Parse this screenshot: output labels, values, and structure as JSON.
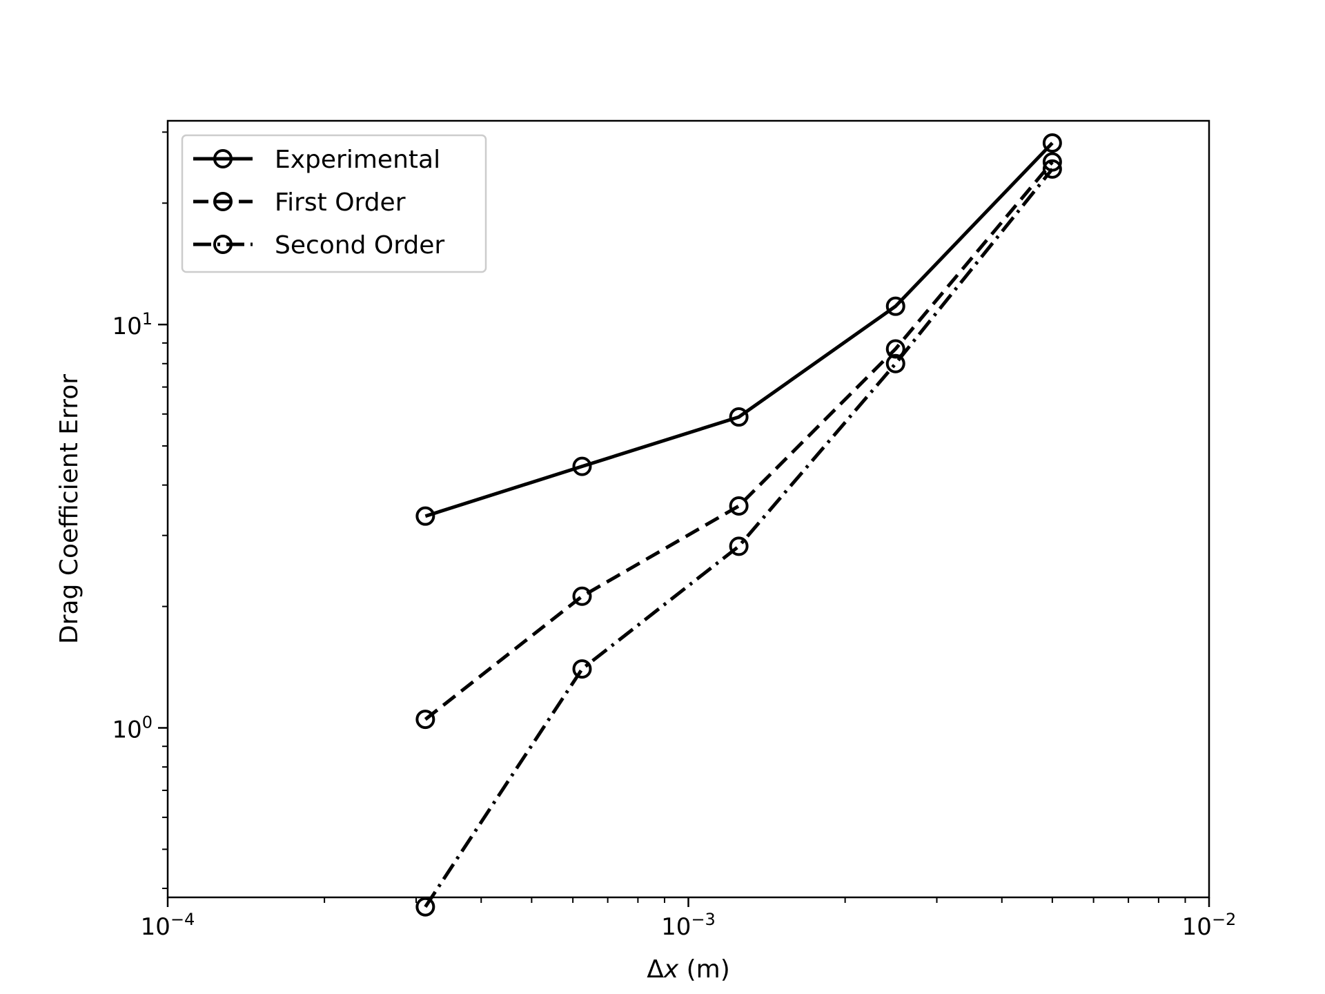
{
  "chart_data": {
    "type": "line",
    "xscale": "log",
    "yscale": "log",
    "xlim": [
      0.0001,
      0.01
    ],
    "ylim": [
      0.38,
      32
    ],
    "xlabel_symbol": "Δ",
    "xlabel_var": "x",
    "xlabel_unit": " (m)",
    "ylabel": "Drag Coefficient Error",
    "grid": false,
    "legend_position": "top-left",
    "x_ticks": [
      {
        "value": 0.0001,
        "base": "10",
        "exp": "−4"
      },
      {
        "value": 0.001,
        "base": "10",
        "exp": "−3"
      },
      {
        "value": 0.01,
        "base": "10",
        "exp": "−2"
      }
    ],
    "y_ticks": [
      {
        "value": 1,
        "base": "10",
        "exp": "0"
      },
      {
        "value": 10,
        "base": "10",
        "exp": "1"
      }
    ],
    "x": [
      0.0003125,
      0.000625,
      0.00125,
      0.0025,
      0.005
    ],
    "series": [
      {
        "name": "Experimental",
        "style": "solid",
        "values": [
          3.35,
          4.45,
          5.9,
          11.1,
          28.2
        ]
      },
      {
        "name": "First Order",
        "style": "dashed",
        "values": [
          1.05,
          2.12,
          3.55,
          8.7,
          25.3
        ]
      },
      {
        "name": "Second Order",
        "style": "dashdot",
        "values": [
          0.36,
          1.4,
          2.82,
          8.0,
          24.3
        ]
      }
    ],
    "colors": {
      "line": "#000000",
      "axes": "#000000",
      "legend_border": "#cccccc"
    }
  }
}
